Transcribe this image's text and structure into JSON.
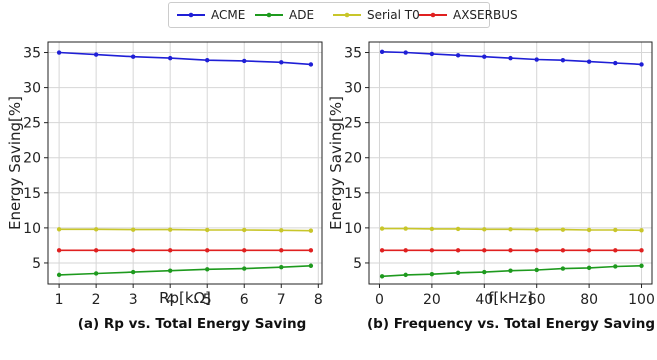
{
  "legend": [
    "ACME",
    "ADE",
    "Serial T0",
    "AXSERBUS"
  ],
  "colors": {
    "ACME": "#1f1fd6",
    "ADE": "#1e9a1e",
    "Serial T0": "#c8c62a",
    "AXSERBUS": "#e02020"
  },
  "chart_data": [
    {
      "type": "line",
      "caption": "(a) Rp vs. Total Energy Saving",
      "xlabel": "Rp[kΩ]",
      "ylabel": "Energy Saving[%]",
      "xlim": [
        0.7,
        8.1
      ],
      "ylim": [
        2,
        36.5
      ],
      "xticks": [
        1,
        2,
        3,
        4,
        5,
        6,
        7,
        8
      ],
      "yticks": [
        5,
        10,
        15,
        20,
        25,
        30,
        35
      ],
      "grid": true,
      "x": [
        1,
        2,
        3,
        4,
        5,
        6,
        7,
        7.8
      ],
      "series": [
        {
          "name": "ACME",
          "values": [
            35.0,
            34.7,
            34.4,
            34.2,
            33.9,
            33.8,
            33.6,
            33.3
          ]
        },
        {
          "name": "ADE",
          "values": [
            3.3,
            3.5,
            3.7,
            3.9,
            4.1,
            4.2,
            4.4,
            4.6
          ]
        },
        {
          "name": "Serial T0",
          "values": [
            9.8,
            9.8,
            9.75,
            9.75,
            9.7,
            9.7,
            9.65,
            9.6
          ]
        },
        {
          "name": "AXSERBUS",
          "values": [
            6.8,
            6.8,
            6.8,
            6.8,
            6.8,
            6.8,
            6.8,
            6.8
          ]
        }
      ]
    },
    {
      "type": "line",
      "caption": "(b) Frequency vs. Total Energy Saving",
      "xlabel": "f[kHz]",
      "ylabel": "Energy Saving[%]",
      "xlim": [
        -4,
        104
      ],
      "ylim": [
        2,
        36.5
      ],
      "xticks": [
        0,
        20,
        40,
        60,
        80,
        100
      ],
      "yticks": [
        5,
        10,
        15,
        20,
        25,
        30,
        35
      ],
      "grid": true,
      "x": [
        1,
        10,
        20,
        30,
        40,
        50,
        60,
        70,
        80,
        90,
        100
      ],
      "series": [
        {
          "name": "ACME",
          "values": [
            35.1,
            35.0,
            34.8,
            34.6,
            34.4,
            34.2,
            34.0,
            33.9,
            33.7,
            33.5,
            33.3
          ]
        },
        {
          "name": "ADE",
          "values": [
            3.1,
            3.3,
            3.4,
            3.6,
            3.7,
            3.9,
            4.0,
            4.2,
            4.3,
            4.5,
            4.6
          ]
        },
        {
          "name": "Serial T0",
          "values": [
            9.9,
            9.9,
            9.85,
            9.85,
            9.8,
            9.8,
            9.75,
            9.75,
            9.7,
            9.7,
            9.65
          ]
        },
        {
          "name": "AXSERBUS",
          "values": [
            6.8,
            6.8,
            6.8,
            6.8,
            6.8,
            6.8,
            6.8,
            6.8,
            6.8,
            6.8,
            6.8
          ]
        }
      ]
    }
  ]
}
